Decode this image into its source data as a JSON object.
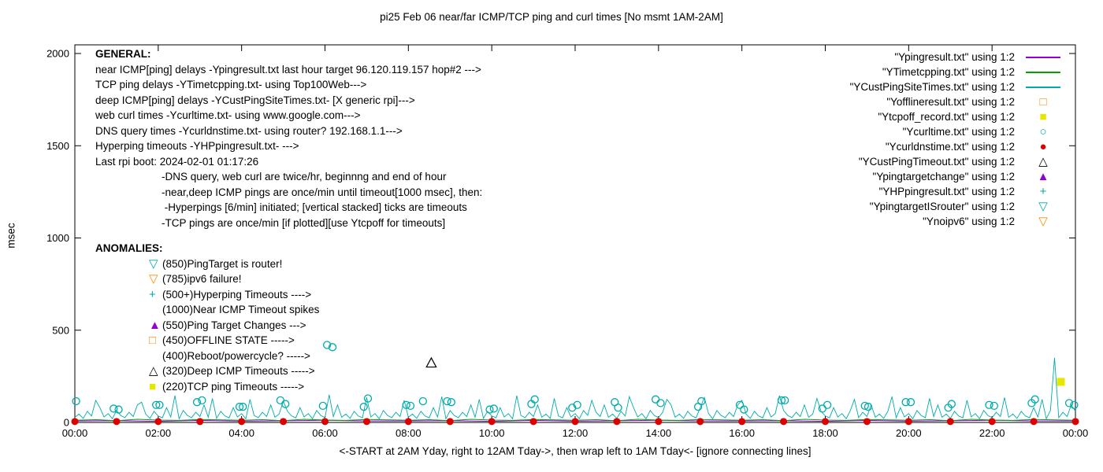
{
  "title": "pi25 Feb 06  near/far ICMP/TCP ping and curl times [No msmt 1AM-2AM]",
  "axes": {
    "ylabel": "msec",
    "xlabel": "<-START at 2AM Yday, right to 12AM Tday->, then wrap left to 1AM Tday<- [ignore connecting lines]",
    "y_ticks": [
      0,
      500,
      1000,
      1500,
      2000
    ],
    "x_ticks": [
      "00:00",
      "02:00",
      "04:00",
      "06:00",
      "08:00",
      "10:00",
      "12:00",
      "14:00",
      "16:00",
      "18:00",
      "20:00",
      "22:00",
      "00:00"
    ],
    "x_hours": 24,
    "y_max": 2000
  },
  "colors": {
    "purple": "#9400d3",
    "green": "#00a000",
    "teal": "#00abab",
    "orange": "#ff8c00",
    "yellow": "#e6e600",
    "red": "#dd0000",
    "black": "#000000"
  },
  "legend": [
    {
      "label": "\"Ypingresult.txt\" using 1:2",
      "key": "line",
      "color": "#9400d3"
    },
    {
      "label": "\"YTimetcpping.txt\" using 1:2",
      "key": "line",
      "color": "#00a000"
    },
    {
      "label": "\"YCustPingSiteTimes.txt\" using 1:2",
      "key": "line",
      "color": "#00abab"
    },
    {
      "label": "\"Yofflineresult.txt\" using 1:2",
      "key": "square-open",
      "color": "#ff8c00"
    },
    {
      "label": "\"Ytcpoff_record.txt\" using 1:2",
      "key": "square-filled",
      "color": "#e6e600"
    },
    {
      "label": "\"Ycurltime.txt\" using 1:2",
      "key": "circle-open",
      "color": "#00abab"
    },
    {
      "label": "\"Ycurldnstime.txt\" using 1:2",
      "key": "circle-filled",
      "color": "#dd0000"
    },
    {
      "label": "\"YCustPingTimeout.txt\" using 1:2",
      "key": "triangle-open",
      "color": "#000000"
    },
    {
      "label": "\"Ypingtargetchange\" using 1:2",
      "key": "triangle-filled",
      "color": "#9400d3"
    },
    {
      "label": "\"YHPpingresult.txt\" using 1:2",
      "key": "plus",
      "color": "#00abab"
    },
    {
      "label": "\"YpingtargetISrouter\" using 1:2",
      "key": "triangle-down-open",
      "color": "#00abab"
    },
    {
      "label": "\"Ynoipv6\" using 1:2",
      "key": "triangle-down-open",
      "color": "#ff8c00"
    }
  ],
  "annotations": {
    "general_title": "GENERAL:",
    "general_lines": [
      "near ICMP[ping] delays -Ypingresult.txt last hour target 96.120.119.157 hop#2 --->",
      "TCP ping delays -YTimetcpping.txt- using Top100Web--->",
      "deep ICMP[ping] delays -YCustPingSiteTimes.txt- [X generic rpi]--->",
      "web curl times -Ycurltime.txt- using www.google.com--->",
      "DNS query times -Ycurldnstime.txt- using router? 192.168.1.1--->",
      "Hyperping timeouts -YHPpingresult.txt- --->",
      "Last rpi boot: 2024-02-01 01:17:26"
    ],
    "general_notes": [
      "-DNS query, web curl are twice/hr, beginnng and end of hour",
      "-near,deep ICMP pings are once/min until timeout[1000 msec], then:",
      " -Hyperpings [6/min] initiated; [vertical stacked] ticks are timeouts",
      "-TCP pings are once/min [if plotted][use Ytcpoff for timeouts]"
    ],
    "anomalies_title": "ANOMALIES:",
    "anomalies": [
      {
        "marker": "triangle-down-open",
        "color": "#00abab",
        "text": "(850)PingTarget is router!"
      },
      {
        "marker": "triangle-down-open",
        "color": "#ff8c00",
        "text": "(785)ipv6 failure!"
      },
      {
        "marker": "plus",
        "color": "#00abab",
        "text": "(500+)Hyperping Timeouts ---->"
      },
      {
        "marker": "",
        "color": "",
        "text": "(1000)Near ICMP Timeout spikes"
      },
      {
        "marker": "triangle-filled",
        "color": "#9400d3",
        "text": "(550)Ping Target Changes --->"
      },
      {
        "marker": "square-open",
        "color": "#ff8c00",
        "text": "(450)OFFLINE STATE ----->"
      },
      {
        "marker": "",
        "color": "",
        "text": "(400)Reboot/powercycle? ----->"
      },
      {
        "marker": "triangle-open",
        "color": "#000000",
        "text": "(320)Deep ICMP Timeouts ----->"
      },
      {
        "marker": "square-filled",
        "color": "#e6e600",
        "text": "(220)TCP ping Timeouts ----->"
      }
    ]
  },
  "chart_data": {
    "type": "line",
    "title": "pi25 Feb 06  near/far ICMP/TCP ping and curl times [No msmt 1AM-2AM]",
    "xlabel": "<-START at 2AM Yday, right to 12AM Tday->, then wrap left to 1AM Tday<- [ignore connecting lines]",
    "ylabel": "msec",
    "xlim": [
      0,
      24
    ],
    "ylim": [
      0,
      2000
    ],
    "grid": false,
    "legend_position": "top-right",
    "series": [
      {
        "name": "Ypingresult",
        "type": "line",
        "color": "#9400d3",
        "width": 1,
        "x_start": 0,
        "x_step": 1,
        "values": [
          8,
          10,
          6,
          11,
          7,
          9,
          12,
          8,
          8,
          10,
          6,
          11,
          7,
          9,
          12,
          8,
          8,
          10,
          6,
          11,
          7,
          9,
          12,
          8,
          8
        ]
      },
      {
        "name": "YTimetcpping",
        "type": "line",
        "color": "#00a000",
        "width": 1,
        "x_start": 0,
        "x_step": 0.5,
        "values": [
          12,
          15,
          10,
          17,
          13,
          11,
          16,
          14,
          12,
          15,
          10,
          17,
          13,
          11,
          16,
          14,
          12,
          15,
          10,
          17,
          13,
          11,
          16,
          14,
          12,
          15,
          10,
          17,
          13,
          11,
          16,
          14,
          12,
          15,
          10,
          17,
          13,
          11,
          16,
          14,
          12,
          15,
          10,
          17,
          13,
          11,
          16,
          14,
          12
        ]
      },
      {
        "name": "YCustPingSiteTimes",
        "type": "line",
        "color": "#00abab",
        "width": 0.9,
        "x_start": 0,
        "x_step": 0.1,
        "values": [
          28,
          45,
          22,
          60,
          35,
          120,
          80,
          30,
          48,
          20,
          65,
          38,
          26,
          55,
          32,
          95,
          110,
          45,
          22,
          60,
          35,
          25,
          80,
          30,
          145,
          20,
          65,
          38,
          26,
          55,
          32,
          95,
          28,
          130,
          22,
          60,
          35,
          25,
          80,
          30,
          48,
          20,
          125,
          38,
          26,
          55,
          32,
          95,
          28,
          45,
          115,
          60,
          35,
          25,
          80,
          30,
          48,
          20,
          65,
          38,
          26,
          150,
          32,
          95,
          28,
          45,
          22,
          60,
          35,
          25,
          135,
          30,
          48,
          20,
          65,
          38,
          26,
          55,
          32,
          120,
          28,
          45,
          22,
          60,
          35,
          25,
          80,
          30,
          140,
          20,
          65,
          38,
          26,
          55,
          32,
          95,
          28,
          125,
          22,
          60,
          35,
          25,
          80,
          30,
          48,
          20,
          145,
          38,
          26,
          55,
          32,
          95,
          28,
          45,
          22,
          130,
          35,
          25,
          80,
          30,
          48,
          20,
          65,
          38,
          120,
          55,
          32,
          95,
          28,
          45,
          22,
          60,
          35,
          140,
          80,
          30,
          48,
          20,
          65,
          38,
          26,
          55,
          125,
          95,
          28,
          45,
          22,
          60,
          35,
          25,
          80,
          135,
          48,
          20,
          65,
          38,
          26,
          55,
          32,
          95,
          120,
          45,
          22,
          60,
          35,
          25,
          80,
          30,
          48,
          145,
          65,
          38,
          26,
          55,
          32,
          95,
          28,
          45,
          130,
          60,
          35,
          25,
          80,
          30,
          48,
          20,
          65,
          125,
          26,
          55,
          32,
          95,
          28,
          45,
          22,
          60,
          140,
          25,
          80,
          30,
          48,
          20,
          65,
          38,
          26,
          130,
          32,
          95,
          28,
          45,
          22,
          60,
          35,
          25,
          120,
          30,
          48,
          20,
          65,
          38,
          26,
          55,
          32,
          135,
          28,
          45,
          22,
          60,
          35,
          25,
          80,
          30,
          125,
          20,
          65,
          350,
          26,
          55,
          32,
          95,
          60
        ]
      },
      {
        "name": "Ycurltime",
        "type": "scatter",
        "marker": "circle-open",
        "color": "#00abab",
        "points": [
          [
            0.03,
            115
          ],
          [
            0.93,
            75
          ],
          [
            1.05,
            70
          ],
          [
            1.95,
            95
          ],
          [
            2.03,
            95
          ],
          [
            2.93,
            110
          ],
          [
            3.05,
            120
          ],
          [
            3.95,
            85
          ],
          [
            4.03,
            85
          ],
          [
            4.93,
            120
          ],
          [
            5.05,
            100
          ],
          [
            5.95,
            90
          ],
          [
            6.05,
            420
          ],
          [
            6.18,
            408
          ],
          [
            6.93,
            85
          ],
          [
            7.03,
            130
          ],
          [
            7.95,
            95
          ],
          [
            8.05,
            90
          ],
          [
            8.35,
            115
          ],
          [
            8.93,
            115
          ],
          [
            9.03,
            110
          ],
          [
            9.95,
            70
          ],
          [
            10.05,
            75
          ],
          [
            10.95,
            100
          ],
          [
            11.03,
            125
          ],
          [
            11.93,
            80
          ],
          [
            12.05,
            95
          ],
          [
            12.95,
            110
          ],
          [
            13.03,
            80
          ],
          [
            13.93,
            125
          ],
          [
            14.05,
            105
          ],
          [
            14.95,
            85
          ],
          [
            15.03,
            115
          ],
          [
            15.95,
            95
          ],
          [
            16.05,
            70
          ],
          [
            16.95,
            120
          ],
          [
            17.03,
            120
          ],
          [
            17.93,
            75
          ],
          [
            18.05,
            95
          ],
          [
            18.95,
            90
          ],
          [
            19.03,
            85
          ],
          [
            19.93,
            110
          ],
          [
            20.05,
            110
          ],
          [
            20.95,
            80
          ],
          [
            21.03,
            100
          ],
          [
            21.93,
            95
          ],
          [
            22.05,
            90
          ],
          [
            22.95,
            105
          ],
          [
            23.03,
            125
          ],
          [
            23.85,
            105
          ],
          [
            23.97,
            95
          ]
        ]
      },
      {
        "name": "Ycurldnstime",
        "type": "scatter",
        "marker": "circle-filled",
        "color": "#dd0000",
        "points": [
          [
            0,
            5
          ],
          [
            1,
            5
          ],
          [
            2,
            5
          ],
          [
            3,
            5
          ],
          [
            4,
            5
          ],
          [
            5,
            5
          ],
          [
            6,
            5
          ],
          [
            7,
            5
          ],
          [
            8,
            5
          ],
          [
            9,
            5
          ],
          [
            10,
            5
          ],
          [
            11,
            5
          ],
          [
            12,
            5
          ],
          [
            13,
            5
          ],
          [
            14,
            5
          ],
          [
            15,
            5
          ],
          [
            16,
            5
          ],
          [
            17,
            5
          ],
          [
            18,
            5
          ],
          [
            19,
            5
          ],
          [
            20,
            5
          ],
          [
            21,
            5
          ],
          [
            22,
            5
          ],
          [
            23,
            5
          ],
          [
            24,
            5
          ]
        ]
      },
      {
        "name": "YCustPingTimeout",
        "type": "scatter",
        "marker": "triangle-open",
        "color": "#000000",
        "points": [
          [
            8.55,
            320
          ]
        ]
      },
      {
        "name": "Ytcpoff_record",
        "type": "scatter",
        "marker": "square-filled",
        "color": "#e6e600",
        "points": [
          [
            23.65,
            220
          ]
        ]
      }
    ]
  }
}
